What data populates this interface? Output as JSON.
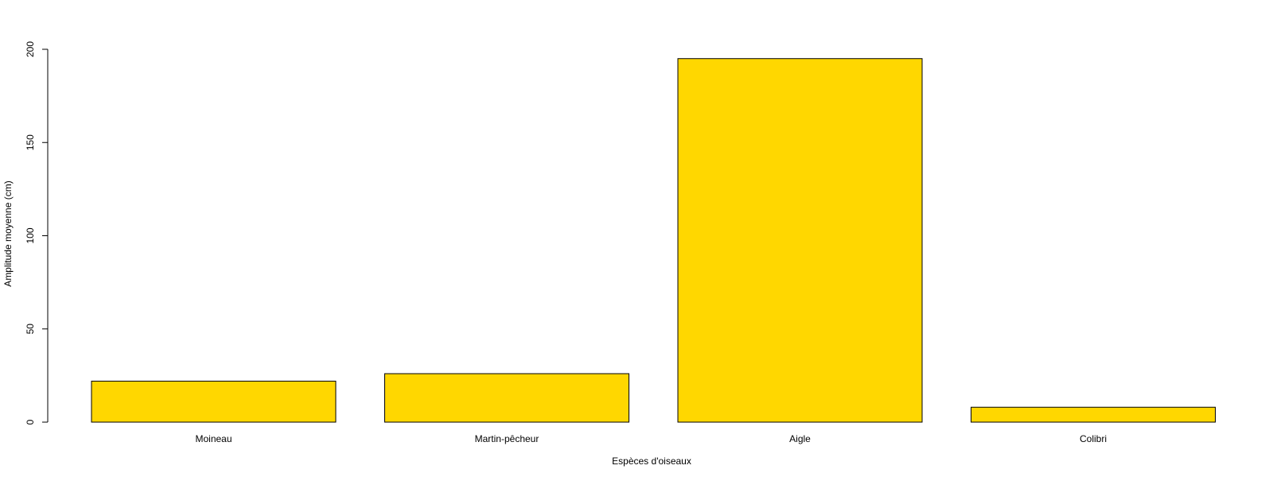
{
  "chart_data": {
    "type": "bar",
    "categories": [
      "Moineau",
      "Martin-pêcheur",
      "Aigle",
      "Colibri"
    ],
    "values": [
      22,
      26,
      195,
      8
    ],
    "title": "",
    "xlabel": "Espèces d'oiseaux",
    "ylabel": "Amplitude moyenne (cm)",
    "ylim": [
      0,
      200
    ],
    "yticks": [
      0,
      50,
      100,
      150,
      200
    ],
    "grid": false,
    "legend": "none",
    "colors": {
      "bar_fill": "#FFD700",
      "bar_stroke": "#000000",
      "axis": "#000000",
      "background": "#FFFFFF"
    }
  }
}
